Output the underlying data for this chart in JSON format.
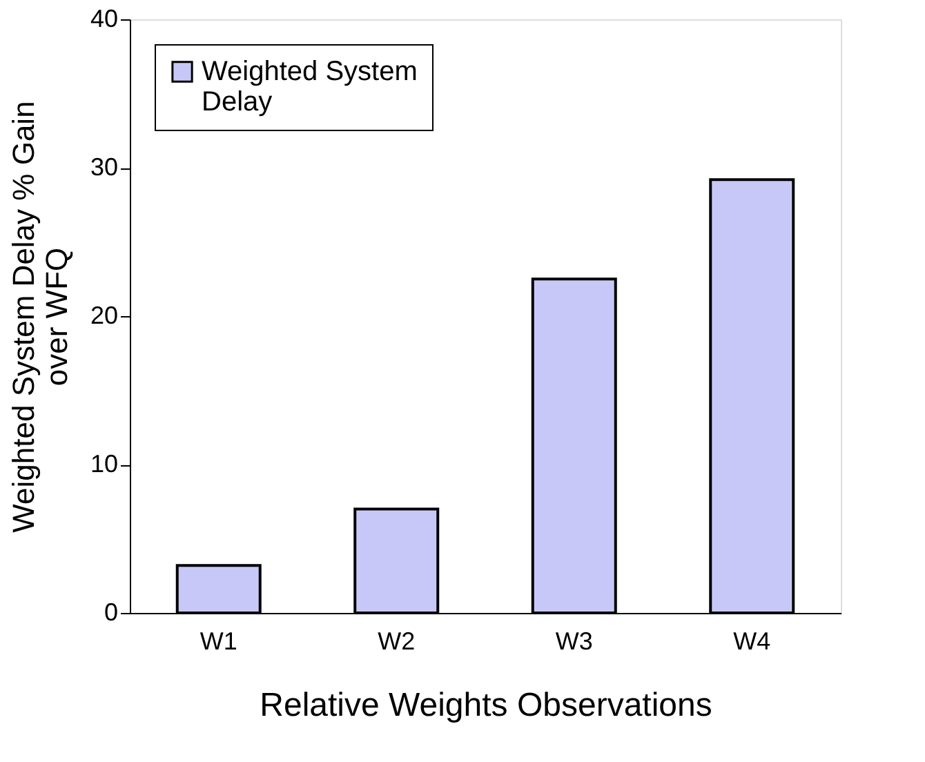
{
  "chart_data": {
    "type": "bar",
    "xlabel": "Relative Weights Observations",
    "ylabel": "Weighted System Delay % Gain over WFQ",
    "categories": [
      "W1",
      "W2",
      "W3",
      "W4"
    ],
    "series": [
      {
        "name": "Weighted System Delay",
        "color": "#c8c8f8",
        "values": [
          3.2,
          7.0,
          22.5,
          29.2
        ]
      }
    ],
    "ylim": [
      0,
      40
    ],
    "yticks": [
      0,
      10,
      20,
      30,
      40
    ],
    "grid": false,
    "legend": "top left"
  }
}
